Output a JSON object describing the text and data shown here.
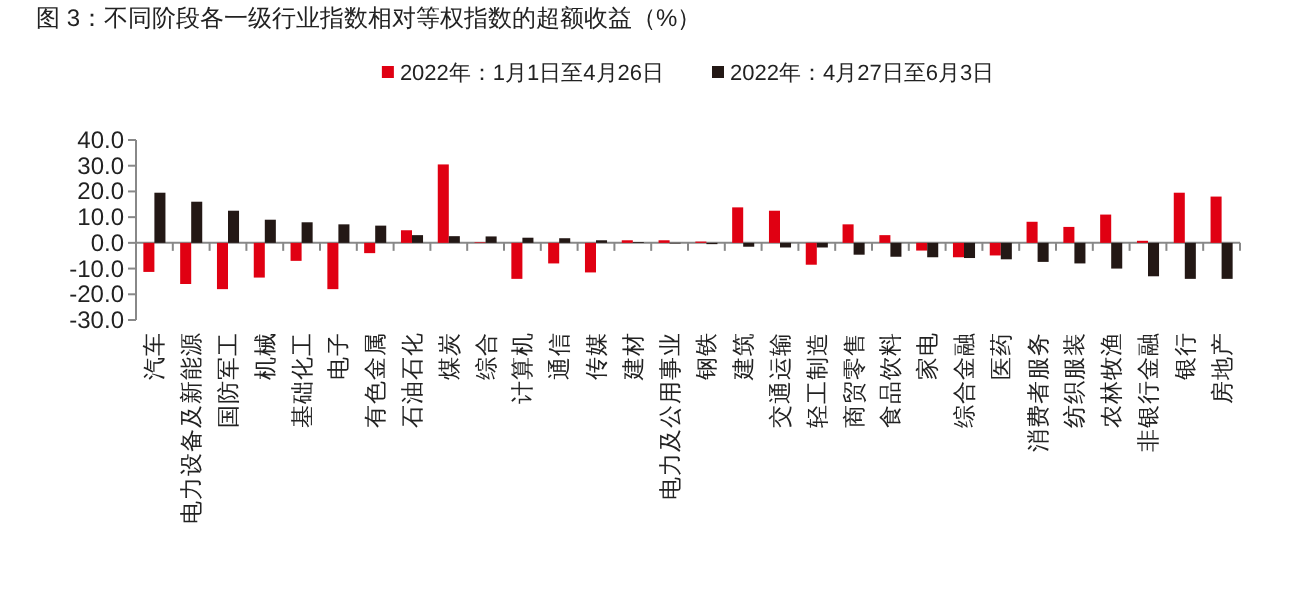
{
  "chart_data": {
    "type": "bar",
    "title": "图 3：不同阶段各一级行业指数相对等权指数的超额收益（%）",
    "categories": [
      "汽车",
      "电力设备及新能源",
      "国防军工",
      "机械",
      "基础化工",
      "电子",
      "有色金属",
      "石油石化",
      "煤炭",
      "综合",
      "计算机",
      "通信",
      "传媒",
      "建材",
      "电力及公用事业",
      "钢铁",
      "建筑",
      "交通运输",
      "轻工制造",
      "商贸零售",
      "食品饮料",
      "家电",
      "综合金融",
      "医药",
      "消费者服务",
      "纺织服装",
      "农林牧渔",
      "非银行金融",
      "银行",
      "房地产"
    ],
    "series": [
      {
        "name": "2022年：1月1日至4月26日",
        "color": "#e00012",
        "values": [
          -11.3,
          -16,
          -18,
          -13.5,
          -7,
          -18,
          -4,
          4.9,
          30.5,
          0.2,
          -14,
          -8,
          -11.5,
          1,
          1,
          0.5,
          13.8,
          12.5,
          -8.5,
          7.2,
          3,
          -3,
          -5.6,
          -4.9,
          8.2,
          6.2,
          11,
          0.8,
          19.5,
          18
        ]
      },
      {
        "name": "2022年：4月27日至6月3日",
        "color": "#231815",
        "values": [
          19.5,
          16,
          12.5,
          9,
          8,
          7.2,
          6.7,
          3,
          2.6,
          2.5,
          2,
          1.8,
          1,
          0.3,
          0,
          -0.5,
          -1.5,
          -1.8,
          -1.8,
          -4.6,
          -5.4,
          -5.6,
          -5.9,
          -6.4,
          -7.4,
          -8,
          -10,
          -13,
          -14,
          -14
        ]
      }
    ],
    "ylim": [
      -30,
      40
    ],
    "yticks": [
      {
        "value": -30,
        "label": "-30.0"
      },
      {
        "value": -20,
        "label": "-20.0"
      },
      {
        "value": -10,
        "label": "-10.0"
      },
      {
        "value": 0,
        "label": "0.0"
      },
      {
        "value": 10,
        "label": "10.0"
      },
      {
        "value": 20,
        "label": "20.0"
      },
      {
        "value": 30,
        "label": "30.0"
      },
      {
        "value": 40,
        "label": "40.0"
      }
    ],
    "legend": "top"
  }
}
